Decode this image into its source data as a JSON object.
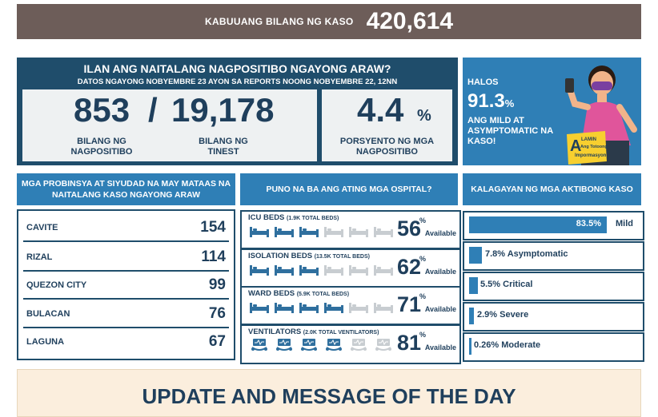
{
  "total": {
    "label": "KABUUANG BILANG NG KASO",
    "value": "420,614"
  },
  "positives": {
    "question": "ILAN ANG NAITALANG NAGPOSITIBO NGAYONG ARAW?",
    "subtitle": "DATOS NGAYONG NOBYEMBRE 23 AYON SA REPORTS NOONG NOBYEMBRE 22, 12NN",
    "positive_count": "853",
    "slash": "/",
    "tested_count": "19,178",
    "positive_label_1": "BILANG NG",
    "positive_label_2": "NAGPOSITIBO",
    "tested_label_1": "BILANG NG",
    "tested_label_2": "TINEST",
    "rate": "4.4",
    "rate_unit": "%",
    "rate_label_1": "PORSYENTO NG MGA",
    "rate_label_2": "NAGPOSITIBO"
  },
  "promo": {
    "line1": "HALOS",
    "value": "91.3",
    "value_unit": "%",
    "line3": "ANG MILD AT ASYMPTOMATIC NA KASO!",
    "badge_a": "A",
    "badge_1": "LAMIN",
    "badge_2": "Ang Totoong",
    "badge_3": "Impormasyon",
    "colors": {
      "shirt": "#e0559b",
      "skin": "#f2b48a",
      "mask": "#7a3fa0",
      "hair": "#2b1b12"
    }
  },
  "provinces": {
    "header": "MGA PROBINSYA AT SIYUDAD NA MAY MATAAS NA NAITALANG KASO NGAYONG ARAW",
    "rows": [
      {
        "name": "CAVITE",
        "value": "154"
      },
      {
        "name": "RIZAL",
        "value": "114"
      },
      {
        "name": "QUEZON CITY",
        "value": "99"
      },
      {
        "name": "BULACAN",
        "value": "76"
      },
      {
        "name": "LAGUNA",
        "value": "67"
      }
    ]
  },
  "hospitals": {
    "header": "PUNO NA BA ANG ATING MGA OSPITAL?",
    "percent_sign": "%",
    "available": "Available",
    "cards": [
      {
        "name": "ICU BEDS",
        "note": "(1.9K TOTAL BEDS)",
        "pct": "56",
        "filled": 3,
        "icon": "bed-icon"
      },
      {
        "name": "ISOLATION BEDS",
        "note": "(13.5K TOTAL BEDS)",
        "pct": "62",
        "filled": 3,
        "icon": "bed-icon"
      },
      {
        "name": "WARD BEDS",
        "note": "(5.9K TOTAL BEDS)",
        "pct": "71",
        "filled": 4,
        "icon": "bed-icon"
      },
      {
        "name": "VENTILATORS",
        "note": "(2.0K TOTAL VENTILATORS)",
        "pct": "81",
        "filled": 4,
        "icon": "ventilator-icon"
      }
    ],
    "colors": {
      "filled": "#2f6f9e",
      "empty": "#c8cdd1"
    }
  },
  "active": {
    "header": "KALAGAYAN NG MGA AKTIBONG KASO",
    "rows": [
      {
        "value": "83.5%",
        "label": "Mild",
        "fraction": 0.835
      },
      {
        "value": "7.8%",
        "label": "Asymptomatic",
        "fraction": 0.078
      },
      {
        "value": "5.5%",
        "label": "Critical",
        "fraction": 0.055
      },
      {
        "value": "2.9%",
        "label": "Severe",
        "fraction": 0.029
      },
      {
        "value": "0.26%",
        "label": "Moderate",
        "fraction": 0.0026
      }
    ]
  },
  "update": {
    "title": "UPDATE AND MESSAGE OF THE DAY"
  }
}
